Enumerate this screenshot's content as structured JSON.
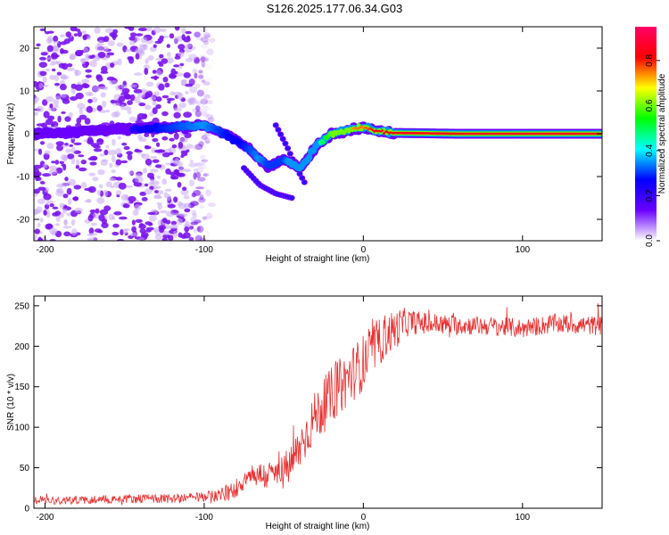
{
  "title": "S126.2025.177.06.34.G03",
  "chart_data": [
    {
      "type": "heatmap",
      "xlabel": "Height of straight line (km)",
      "ylabel": "Frequency (Hz)",
      "xlim": [
        -207,
        150
      ],
      "ylim": [
        -25,
        25
      ],
      "x_ticks": [
        "-200",
        "-100",
        "0",
        "100"
      ],
      "x_tick_values": [
        -200,
        -100,
        0,
        100
      ],
      "y_ticks": [
        "-20",
        "-10",
        "0",
        "10",
        "20"
      ],
      "y_tick_values": [
        -20,
        -10,
        0,
        10,
        20
      ],
      "colorbar": {
        "label": "Normalized spectral amplitude",
        "range": [
          0,
          0.95
        ],
        "ticks": [
          "0.0",
          "0.2",
          "0.4",
          "0.6",
          "0.8"
        ],
        "tick_values": [
          0.0,
          0.2,
          0.4,
          0.6,
          0.8
        ],
        "colormap": [
          "#ffffff",
          "#6a00ff",
          "#0000ff",
          "#00ffff",
          "#00ff00",
          "#ffff00",
          "#ff0000",
          "#ff0066"
        ]
      },
      "ridge": {
        "x": [
          -207,
          -180,
          -160,
          -140,
          -120,
          -100,
          -90,
          -80,
          -72,
          -65,
          -60,
          -55,
          -50,
          -45,
          -40,
          -35,
          -30,
          -25,
          -20,
          -15,
          -10,
          -5,
          0,
          5,
          10,
          15,
          20,
          40,
          60,
          80,
          100,
          120,
          150
        ],
        "freq": [
          0,
          0.5,
          1,
          1.2,
          1.5,
          2,
          0.5,
          -1.5,
          -3.5,
          -6,
          -7.5,
          -7,
          -6,
          -7,
          -8,
          -6,
          -3,
          -1.5,
          0,
          0.5,
          0.8,
          1.2,
          1.5,
          1,
          0.5,
          0.3,
          0.2,
          0.1,
          0,
          0,
          0,
          0,
          0
        ],
        "amplitude": [
          0.05,
          0.1,
          0.15,
          0.25,
          0.3,
          0.35,
          0.3,
          0.25,
          0.3,
          0.35,
          0.3,
          0.3,
          0.3,
          0.4,
          0.35,
          0.35,
          0.4,
          0.5,
          0.6,
          0.7,
          0.7,
          0.75,
          0.75,
          0.8,
          0.85,
          0.85,
          0.85,
          0.85,
          0.85,
          0.85,
          0.85,
          0.85,
          0.85
        ]
      },
      "side_branches": [
        {
          "x": [
            -75,
            -65,
            -55,
            -45
          ],
          "freq": [
            -8,
            -12,
            -14,
            -15
          ]
        },
        {
          "x": [
            -55,
            -48,
            -42,
            -36
          ],
          "freq": [
            2,
            -3,
            -8,
            -12
          ]
        }
      ],
      "noise_region": {
        "x_range": [
          -207,
          -95
        ],
        "freq_range": [
          -25,
          25
        ]
      }
    },
    {
      "type": "line",
      "xlabel": "Height of straight line (km)",
      "ylabel": "SNR (10 * v/v)",
      "xlim": [
        -207,
        150
      ],
      "ylim": [
        0,
        262
      ],
      "x_ticks": [
        "-200",
        "-100",
        "0",
        "100"
      ],
      "x_tick_values": [
        -200,
        -100,
        0,
        100
      ],
      "y_ticks": [
        "0",
        "50",
        "100",
        "150",
        "200",
        "250"
      ],
      "y_tick_values": [
        0,
        50,
        100,
        150,
        200,
        250
      ],
      "color": "#e83030",
      "trend": {
        "x": [
          -207,
          -180,
          -150,
          -120,
          -100,
          -85,
          -80,
          -75,
          -70,
          -60,
          -50,
          -45,
          -40,
          -35,
          -30,
          -25,
          -20,
          -15,
          -10,
          -5,
          0,
          5,
          10,
          15,
          20,
          25,
          30,
          40,
          60,
          80,
          100,
          120,
          150
        ],
        "y": [
          10,
          10,
          12,
          12,
          14,
          18,
          25,
          35,
          42,
          40,
          45,
          55,
          75,
          95,
          115,
          125,
          140,
          150,
          160,
          170,
          180,
          195,
          205,
          215,
          220,
          228,
          230,
          228,
          226,
          225,
          222,
          228,
          225
        ]
      },
      "noise_amplitude": {
        "x": [
          -207,
          -100,
          -80,
          -60,
          -40,
          -20,
          0,
          20,
          30,
          60,
          150
        ],
        "amp": [
          5,
          6,
          12,
          18,
          28,
          35,
          35,
          25,
          15,
          12,
          12
        ]
      }
    }
  ]
}
